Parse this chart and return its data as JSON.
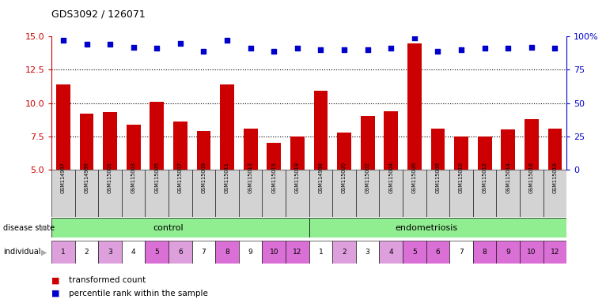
{
  "title": "GDS3092 / 126071",
  "samples": [
    "GSM114997",
    "GSM114999",
    "GSM115001",
    "GSM115003",
    "GSM115005",
    "GSM115007",
    "GSM115009",
    "GSM115011",
    "GSM115013",
    "GSM115015",
    "GSM115018",
    "GSM114998",
    "GSM115000",
    "GSM115002",
    "GSM115004",
    "GSM115006",
    "GSM115008",
    "GSM115010",
    "GSM115012",
    "GSM115014",
    "GSM115016",
    "GSM115019"
  ],
  "bar_values": [
    11.4,
    9.2,
    9.3,
    8.4,
    10.1,
    8.6,
    7.9,
    11.4,
    8.1,
    7.0,
    7.5,
    10.9,
    7.8,
    9.0,
    9.4,
    14.5,
    8.1,
    7.5,
    7.5,
    8.0,
    8.8,
    8.1
  ],
  "dot_values": [
    97,
    94,
    94,
    92,
    91,
    95,
    89,
    97,
    91,
    89,
    91,
    90,
    90,
    90,
    91,
    99,
    89,
    90,
    91,
    91,
    92,
    91
  ],
  "ylim_left": [
    5,
    15
  ],
  "ylim_right": [
    0,
    100
  ],
  "yticks_left": [
    5,
    7.5,
    10,
    12.5,
    15
  ],
  "yticks_right": [
    0,
    25,
    50,
    75,
    100
  ],
  "bar_color": "#cc0000",
  "dot_color": "#0000cc",
  "hline_values": [
    7.5,
    10.0,
    12.5
  ],
  "individual_labels": [
    "1",
    "2",
    "3",
    "4",
    "5",
    "6",
    "7",
    "8",
    "9",
    "10",
    "12",
    "1",
    "2",
    "3",
    "4",
    "5",
    "6",
    "7",
    "8",
    "9",
    "10",
    "12"
  ],
  "ind_colors_control": [
    "#dda0dd",
    "#ffffff",
    "#dda0dd",
    "#ffffff",
    "#da70d6",
    "#dda0dd",
    "#ffffff",
    "#da70d6",
    "#ffffff",
    "#da70d6",
    "#da70d6"
  ],
  "ind_colors_endo": [
    "#ffffff",
    "#dda0dd",
    "#ffffff",
    "#dda0dd",
    "#da70d6",
    "#da70d6",
    "#ffffff",
    "#da70d6",
    "#da70d6",
    "#da70d6",
    "#da70d6"
  ],
  "legend_bar_label": "transformed count",
  "legend_dot_label": "percentile rank within the sample",
  "background_color": "#ffffff",
  "axis_label_color_left": "#cc0000",
  "axis_label_color_right": "#0000cc",
  "sample_box_color": "#d3d3d3",
  "disease_color": "#90ee90"
}
